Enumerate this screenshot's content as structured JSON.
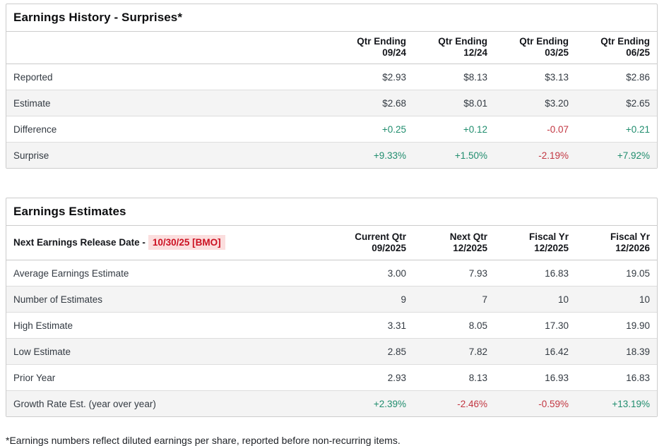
{
  "colors": {
    "positive": "#208d6e",
    "negative": "#c23641",
    "release_date_text": "#cc1122",
    "release_date_bg": "#fbdede",
    "row_alt_bg": "#f4f4f4"
  },
  "tables": {
    "surprises": {
      "title": "Earnings History - Surprises*",
      "label_header": "",
      "columns": [
        "Qtr Ending|09/24",
        "Qtr Ending|12/24",
        "Qtr Ending|03/25",
        "Qtr Ending|06/25"
      ],
      "rows": [
        {
          "label": "Reported",
          "values": [
            "$2.93",
            "$8.13",
            "$3.13",
            "$2.86"
          ]
        },
        {
          "label": "Estimate",
          "values": [
            "$2.68",
            "$8.01",
            "$3.20",
            "$2.65"
          ]
        },
        {
          "label": "Difference",
          "values": [
            "+0.25",
            "+0.12",
            "-0.07",
            "+0.21"
          ]
        },
        {
          "label": "Surprise",
          "values": [
            "+9.33%",
            "+1.50%",
            "-2.19%",
            "+7.92%"
          ]
        }
      ]
    },
    "estimates": {
      "title": "Earnings Estimates",
      "label_header": "Next Earnings Release Date -",
      "release_date": "10/30/25 [BMO]",
      "columns": [
        "Current Qtr|09/2025",
        "Next Qtr|12/2025",
        "Fiscal Yr|12/2025",
        "Fiscal Yr|12/2026"
      ],
      "rows": [
        {
          "label": "Average Earnings Estimate",
          "values": [
            "3.00",
            "7.93",
            "16.83",
            "19.05"
          ]
        },
        {
          "label": "Number of Estimates",
          "values": [
            "9",
            "7",
            "10",
            "10"
          ]
        },
        {
          "label": "High Estimate",
          "values": [
            "3.31",
            "8.05",
            "17.30",
            "19.90"
          ]
        },
        {
          "label": "Low Estimate",
          "values": [
            "2.85",
            "7.82",
            "16.42",
            "18.39"
          ]
        },
        {
          "label": "Prior Year",
          "values": [
            "2.93",
            "8.13",
            "16.93",
            "16.83"
          ]
        },
        {
          "label": "Growth Rate Est. (year over year)",
          "values": [
            "+2.39%",
            "-2.46%",
            "-0.59%",
            "+13.19%"
          ]
        }
      ]
    }
  },
  "page": {
    "footnote": "*Earnings numbers reflect diluted earnings per share, reported before non-recurring items."
  }
}
